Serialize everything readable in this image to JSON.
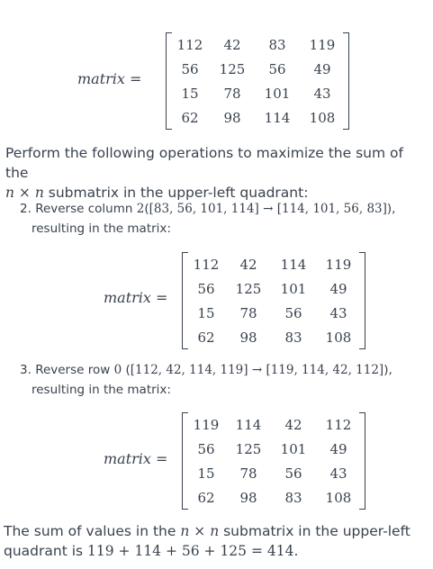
{
  "matrix_label": "matrix",
  "equals": "=",
  "matrix1": [
    [
      "112",
      "42",
      "83",
      "119"
    ],
    [
      "56",
      "125",
      "56",
      "49"
    ],
    [
      "15",
      "78",
      "101",
      "43"
    ],
    [
      "62",
      "98",
      "114",
      "108"
    ]
  ],
  "intro": {
    "line1": "Perform the following operations to maximize the sum of the",
    "n1": "n",
    "times": "×",
    "n2": "n",
    "line2_rest": "submatrix in the upper-left quadrant:"
  },
  "step2": {
    "number": "2.",
    "text": "Reverse column",
    "col": "2",
    "open": "(",
    "from": "[83, 56, 101, 114]",
    "arrow": "→",
    "to": "[114, 101, 56, 83]",
    "close": "),",
    "line2": "resulting in the matrix:"
  },
  "matrix2": [
    [
      "112",
      "42",
      "114",
      "119"
    ],
    [
      "56",
      "125",
      "101",
      "49"
    ],
    [
      "15",
      "78",
      "56",
      "43"
    ],
    [
      "62",
      "98",
      "83",
      "108"
    ]
  ],
  "step3": {
    "number": "3.",
    "text": "Reverse row",
    "row": "0",
    "open": "(",
    "from": "[112, 42, 114, 119]",
    "arrow": "→",
    "to": "[119, 114, 42, 112]",
    "close": "),",
    "line2": "resulting in the matrix:"
  },
  "matrix3": [
    [
      "119",
      "114",
      "42",
      "112"
    ],
    [
      "56",
      "125",
      "101",
      "49"
    ],
    [
      "15",
      "78",
      "56",
      "43"
    ],
    [
      "62",
      "98",
      "83",
      "108"
    ]
  ],
  "conclusion": {
    "line1_pre": "The sum of values in the",
    "n1": "n",
    "times": "×",
    "n2": "n",
    "line1_post": "submatrix in the upper-left",
    "line2_pre": "quadrant is",
    "expr": "119 + 114 + 56 + 125 = 414",
    "period": "."
  }
}
